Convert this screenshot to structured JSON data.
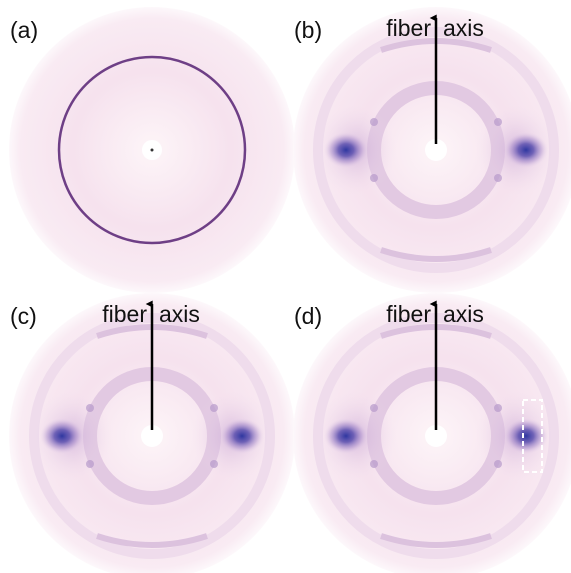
{
  "panels": [
    {
      "label": "(a)"
    },
    {
      "label": "(b)",
      "annotation": {
        "left": "fiber",
        "right": "axis"
      }
    },
    {
      "label": "(c)",
      "annotation": {
        "left": "fiber",
        "right": "axis"
      }
    },
    {
      "label": "(d)",
      "annotation": {
        "left": "fiber",
        "right": "axis"
      }
    }
  ]
}
